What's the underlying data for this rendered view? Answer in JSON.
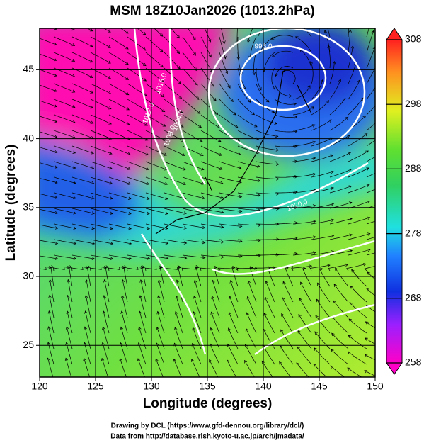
{
  "title": "MSM 18Z10Jan2026 (1013.2hPa)",
  "xlabel": "Longitude (degrees)",
  "ylabel": "Latitude  (degrees)",
  "xlim": [
    120,
    150
  ],
  "xticks": [
    120,
    125,
    130,
    135,
    140,
    145,
    150
  ],
  "ylim": [
    22.7,
    48
  ],
  "yticks": [
    25,
    30,
    35,
    40,
    45
  ],
  "colorbar": {
    "lim": [
      258,
      308
    ],
    "ticks": [
      258,
      268,
      278,
      288,
      298,
      308
    ]
  },
  "contour_labels": [
    "996.0",
    "1004.0",
    "1008.0",
    "1012.0",
    "1016.0",
    "1020.0"
  ],
  "credits": [
    "Drawing by DCL (https://www.gfd-dennou.org/library/dcl/)",
    "Data from http://database.rish.kyoto-u.ac.jp/arch/jmadata/"
  ]
}
